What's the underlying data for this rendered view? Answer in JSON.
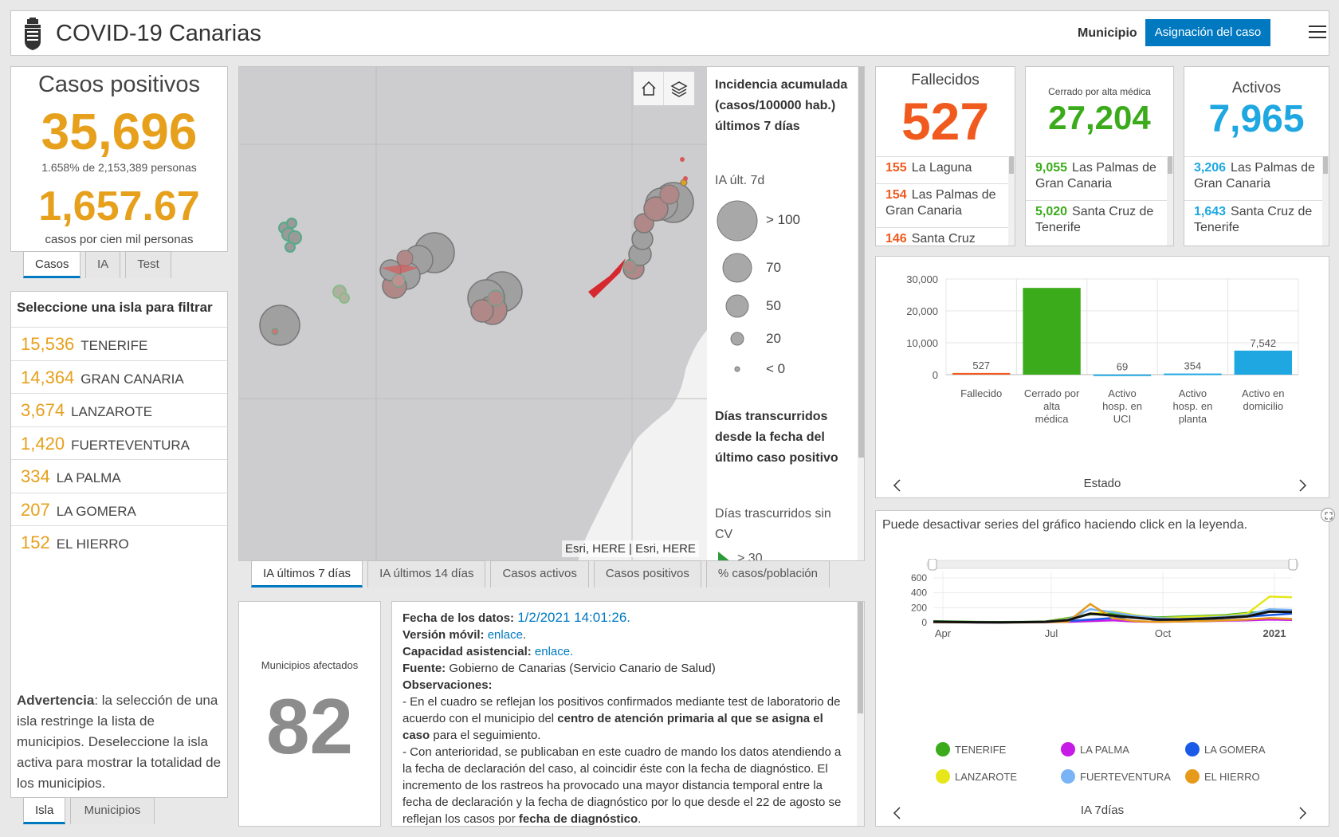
{
  "header": {
    "title": "COVID-19 Canarias",
    "municipio_label": "Municipio",
    "asignacion_button": "Asignación del caso"
  },
  "casos": {
    "title": "Casos positivos",
    "value": "35,696",
    "pct": "1.658% de 2,153,389 personas",
    "rate": "1,657.67",
    "rate_label": "casos por cien mil personas",
    "tabs": [
      "Casos",
      "IA",
      "Test"
    ]
  },
  "islas": {
    "heading": "Seleccione una isla para filtrar",
    "items": [
      {
        "value": "15,536",
        "name": "TENERIFE"
      },
      {
        "value": "14,364",
        "name": "GRAN CANARIA"
      },
      {
        "value": "3,674",
        "name": "LANZAROTE"
      },
      {
        "value": "1,420",
        "name": "FUERTEVENTURA"
      },
      {
        "value": "334",
        "name": "LA PALMA"
      },
      {
        "value": "207",
        "name": "LA GOMERA"
      },
      {
        "value": "152",
        "name": "EL HIERRO"
      }
    ],
    "warning_bold": "Advertencia",
    "warning_text": ": la selección de una isla restringe la lista de municipios. Deseleccione la isla activa para mostrar la totalidad de los municipios.",
    "tabs": [
      "Isla",
      "Municipios"
    ]
  },
  "map": {
    "attribution": "Esri, HERE | Esri, HERE",
    "legend_title": "Incidencia acumulada (casos/100000 hab.) últimos 7 días",
    "legend_sub": "IA últ. 7d",
    "legend_items": [
      "> 100",
      "70",
      "50",
      "20",
      "< 0"
    ],
    "legend2_title": "Días transcurridos desde la fecha del último caso positivo",
    "legend2_sub": "Días trascurridos sin CV",
    "legend2_partial": "> 30",
    "tabs": [
      "IA últimos 7 días",
      "IA últimos 14 días",
      "Casos activos",
      "Casos positivos",
      "% casos/población"
    ],
    "home_icon": "home-icon",
    "layers_icon": "layers-icon"
  },
  "municipios": {
    "label": "Municipios afectados",
    "value": "82"
  },
  "info": {
    "fecha_label": "Fecha de los datos:",
    "fecha_value": "1/2/2021 14:01:26.",
    "movil_label": "Versión móvil:",
    "movil_link": "enlace",
    "capacidad_label": "Capacidad asistencial:",
    "capacidad_link": "enlace.",
    "fuente_label": "Fuente:",
    "fuente_value": "Gobierno de Canarias (Servicio Canario de Salud)",
    "obs_label": "Observaciones:",
    "obs1a": "- En el cuadro se reflejan los positivos confirmados mediante test de laboratorio de acuerdo con el municipio del ",
    "obs1b": "centro de atención primaria al que se asigna el caso",
    "obs1c": " para el seguimiento.",
    "obs2a": "- Con anterioridad, se publicaban en este cuadro de mando los datos atendiendo a la fecha de declaración del caso, al coincidir éste con la fecha de diagnóstico. El incremento de los rastreos ha provocado una mayor distancia temporal entre la fecha de declaración y la fecha de diagnóstico por lo que desde el 22 de agosto se reflejan los casos por ",
    "obs2b": "fecha de diagnóstico",
    "obs2c": "."
  },
  "fallecidos": {
    "title": "Fallecidos",
    "value": "527",
    "rows": [
      {
        "value": "155",
        "name": "La Laguna"
      },
      {
        "value": "154",
        "name": "Las Palmas de Gran Canaria"
      },
      {
        "value": "146",
        "name": "Santa Cruz"
      }
    ],
    "color": "#f05a1e"
  },
  "cerrados": {
    "title": "Cerrado por alta médica",
    "value": "27,204",
    "rows": [
      {
        "value": "9,055",
        "name": "Las Palmas de Gran Canaria"
      },
      {
        "value": "5,020",
        "name": "Santa Cruz de Tenerife"
      }
    ],
    "color": "#3bab1b"
  },
  "activos": {
    "title": "Activos",
    "value": "7,965",
    "rows": [
      {
        "value": "3,206",
        "name": "Las Palmas de Gran Canaria"
      },
      {
        "value": "1,643",
        "name": "Santa Cruz de Tenerife"
      }
    ],
    "color": "#1ea7e1"
  },
  "estado_chart": {
    "xtitle": "Estado",
    "chart_data": {
      "type": "bar",
      "categories": [
        "Fallecido",
        "Cerrado por alta médica",
        "Activo hosp. en UCI",
        "Activo hosp. en planta",
        "Activo en domicilio"
      ],
      "category_lines": [
        [
          "Fallecido"
        ],
        [
          "Cerrado por",
          "alta",
          "médica"
        ],
        [
          "Activo",
          "hosp. en",
          "UCI"
        ],
        [
          "Activo",
          "hosp. en",
          "planta"
        ],
        [
          "Activo en",
          "domicilio"
        ]
      ],
      "values": [
        527,
        27204,
        69,
        354,
        7542
      ],
      "value_labels": [
        "527",
        "",
        "69",
        "354",
        "7,542"
      ],
      "colors": [
        "#f05a1e",
        "#3bab1b",
        "#1ea7e1",
        "#1ea7e1",
        "#1ea7e1"
      ],
      "yticks": [
        0,
        10000,
        20000,
        30000
      ],
      "ytick_labels": [
        "0",
        "10,000",
        "20,000",
        "30,000"
      ],
      "ylim": [
        0,
        30000
      ],
      "xlabel": "Estado"
    }
  },
  "ia_chart": {
    "note": "Puede desactivar series del gráfico haciendo click en la leyenda.",
    "xtitle": "IA 7días",
    "chart_data": {
      "type": "line",
      "x_ticks": [
        "Apr",
        "Jul",
        "Oct",
        "2021"
      ],
      "yticks": [
        0,
        200,
        400,
        600
      ],
      "ytick_labels": [
        "0",
        "200",
        "400",
        "600"
      ],
      "ylim": [
        0,
        600
      ],
      "x_range": [
        "2020-03",
        "2021-02"
      ],
      "series": [
        {
          "name": "TENERIFE",
          "color": "#3bab1b",
          "values": [
            20,
            15,
            10,
            8,
            10,
            15,
            60,
            110,
            120,
            90,
            70,
            80,
            90,
            100,
            130,
            150,
            140
          ]
        },
        {
          "name": "LA PALMA",
          "color": "#c61ae6",
          "values": [
            5,
            3,
            2,
            2,
            3,
            5,
            10,
            20,
            30,
            15,
            10,
            15,
            20,
            25,
            30,
            40,
            35
          ]
        },
        {
          "name": "LA GOMERA",
          "color": "#1a5ae6",
          "values": [
            10,
            5,
            2,
            0,
            5,
            10,
            20,
            40,
            60,
            80,
            30,
            20,
            40,
            60,
            80,
            100,
            120
          ]
        },
        {
          "name": "LANZAROTE",
          "color": "#e6e61a",
          "values": [
            10,
            8,
            5,
            3,
            5,
            10,
            50,
            120,
            150,
            100,
            60,
            70,
            80,
            90,
            120,
            350,
            340
          ]
        },
        {
          "name": "FUERTEVENTURA",
          "color": "#7ab4f5",
          "values": [
            15,
            10,
            5,
            3,
            5,
            10,
            40,
            180,
            140,
            90,
            60,
            50,
            60,
            80,
            100,
            180,
            170
          ]
        },
        {
          "name": "EL HIERRO",
          "color": "#e69a1a",
          "values": [
            5,
            3,
            2,
            1,
            2,
            5,
            10,
            250,
            60,
            20,
            10,
            15,
            20,
            30,
            40,
            60,
            50
          ]
        }
      ]
    }
  }
}
